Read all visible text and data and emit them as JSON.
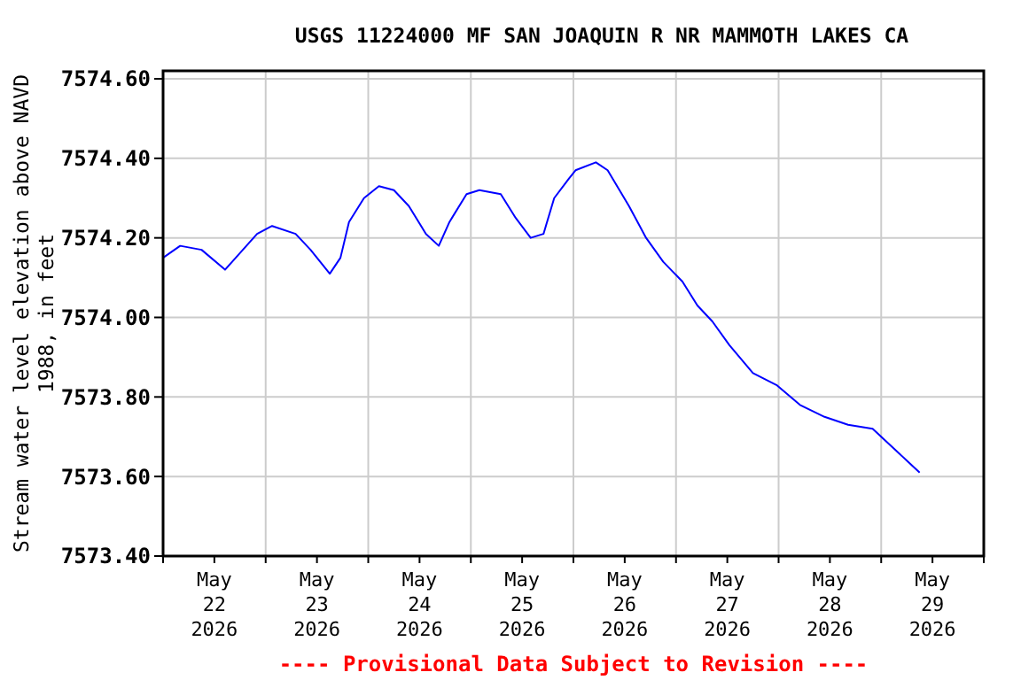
{
  "chart_data": {
    "type": "line",
    "title": "USGS 11224000 MF SAN JOAQUIN R NR MAMMOTH LAKES CA",
    "ylabel": "Stream water level elevation above NAVD 1988, in feet",
    "annotations": [
      "---- Provisional Data Subject to Revision ----"
    ],
    "x": [
      "2026-05-22T00:00",
      "2026-05-22T04:00",
      "2026-05-22T09:00",
      "2026-05-22T14:30",
      "2026-05-22T17:00",
      "2026-05-22T22:00",
      "2026-05-23T01:30",
      "2026-05-23T07:00",
      "2026-05-23T10:30",
      "2026-05-23T15:00",
      "2026-05-23T17:30",
      "2026-05-23T19:30",
      "2026-05-23T23:00",
      "2026-05-24T02:30",
      "2026-05-24T06:00",
      "2026-05-24T09:30",
      "2026-05-24T13:30",
      "2026-05-24T16:30",
      "2026-05-24T19:00",
      "2026-05-24T23:00",
      "2026-05-25T02:00",
      "2026-05-25T07:00",
      "2026-05-25T10:30",
      "2026-05-25T14:00",
      "2026-05-25T17:00",
      "2026-05-25T19:30",
      "2026-05-25T23:00",
      "2026-05-26T00:30",
      "2026-05-26T05:15",
      "2026-05-26T08:00",
      "2026-05-26T13:00",
      "2026-05-26T17:00",
      "2026-05-26T21:00",
      "2026-05-27T01:30",
      "2026-05-27T05:00",
      "2026-05-27T08:30",
      "2026-05-27T12:30",
      "2026-05-27T18:00",
      "2026-05-27T23:30",
      "2026-05-28T05:00",
      "2026-05-28T10:45",
      "2026-05-28T16:15",
      "2026-05-28T22:00",
      "2026-05-29T02:00",
      "2026-05-29T06:00",
      "2026-05-29T09:00"
    ],
    "series": [
      {
        "color": "#0000ff",
        "values": [
          7574.15,
          7574.18,
          7574.17,
          7574.12,
          7574.15,
          7574.21,
          7574.23,
          7574.21,
          7574.17,
          7574.11,
          7574.15,
          7574.24,
          7574.3,
          7574.33,
          7574.32,
          7574.28,
          7574.21,
          7574.18,
          7574.24,
          7574.31,
          7574.32,
          7574.31,
          7574.25,
          7574.2,
          7574.21,
          7574.3,
          7574.35,
          7574.37,
          7574.39,
          7574.37,
          7574.28,
          7574.2,
          7574.14,
          7574.09,
          7574.03,
          7573.99,
          7573.93,
          7573.86,
          7573.83,
          7573.78,
          7573.75,
          7573.73,
          7573.72,
          7573.68,
          7573.64,
          7573.61
        ]
      }
    ],
    "xlim": [
      "2026-05-22T00:00",
      "2026-05-30T00:00"
    ],
    "xticks": [
      {
        "value": "2026-05-22T00:00",
        "label": null
      },
      {
        "value": "2026-05-22T12:00",
        "label": "May\n22\n2026"
      },
      {
        "value": "2026-05-23T00:00",
        "label": null
      },
      {
        "value": "2026-05-23T12:00",
        "label": "May\n23\n2026"
      },
      {
        "value": "2026-05-24T00:00",
        "label": null
      },
      {
        "value": "2026-05-24T12:00",
        "label": "May\n24\n2026"
      },
      {
        "value": "2026-05-25T00:00",
        "label": null
      },
      {
        "value": "2026-05-25T12:00",
        "label": "May\n25\n2026"
      },
      {
        "value": "2026-05-26T00:00",
        "label": null
      },
      {
        "value": "2026-05-26T12:00",
        "label": "May\n26\n2026"
      },
      {
        "value": "2026-05-27T00:00",
        "label": null
      },
      {
        "value": "2026-05-27T12:00",
        "label": "May\n27\n2026"
      },
      {
        "value": "2026-05-28T00:00",
        "label": null
      },
      {
        "value": "2026-05-28T12:00",
        "label": "May\n28\n2026"
      },
      {
        "value": "2026-05-29T00:00",
        "label": null
      },
      {
        "value": "2026-05-29T12:00",
        "label": "May\n29\n2026"
      },
      {
        "value": "2026-05-30T00:00",
        "label": null
      }
    ],
    "ylim": [
      7573.4,
      7574.62
    ],
    "yticks": [
      {
        "value": 7573.4,
        "label": "7573.40"
      },
      {
        "value": 7573.6,
        "label": "7573.60"
      },
      {
        "value": 7573.8,
        "label": "7573.80"
      },
      {
        "value": 7574.0,
        "label": "7574.00"
      },
      {
        "value": 7574.2,
        "label": "7574.20"
      },
      {
        "value": 7574.4,
        "label": "7574.40"
      },
      {
        "value": 7574.6,
        "label": "7574.60"
      }
    ],
    "grid": true,
    "line_style": "solid",
    "marker": "none"
  }
}
